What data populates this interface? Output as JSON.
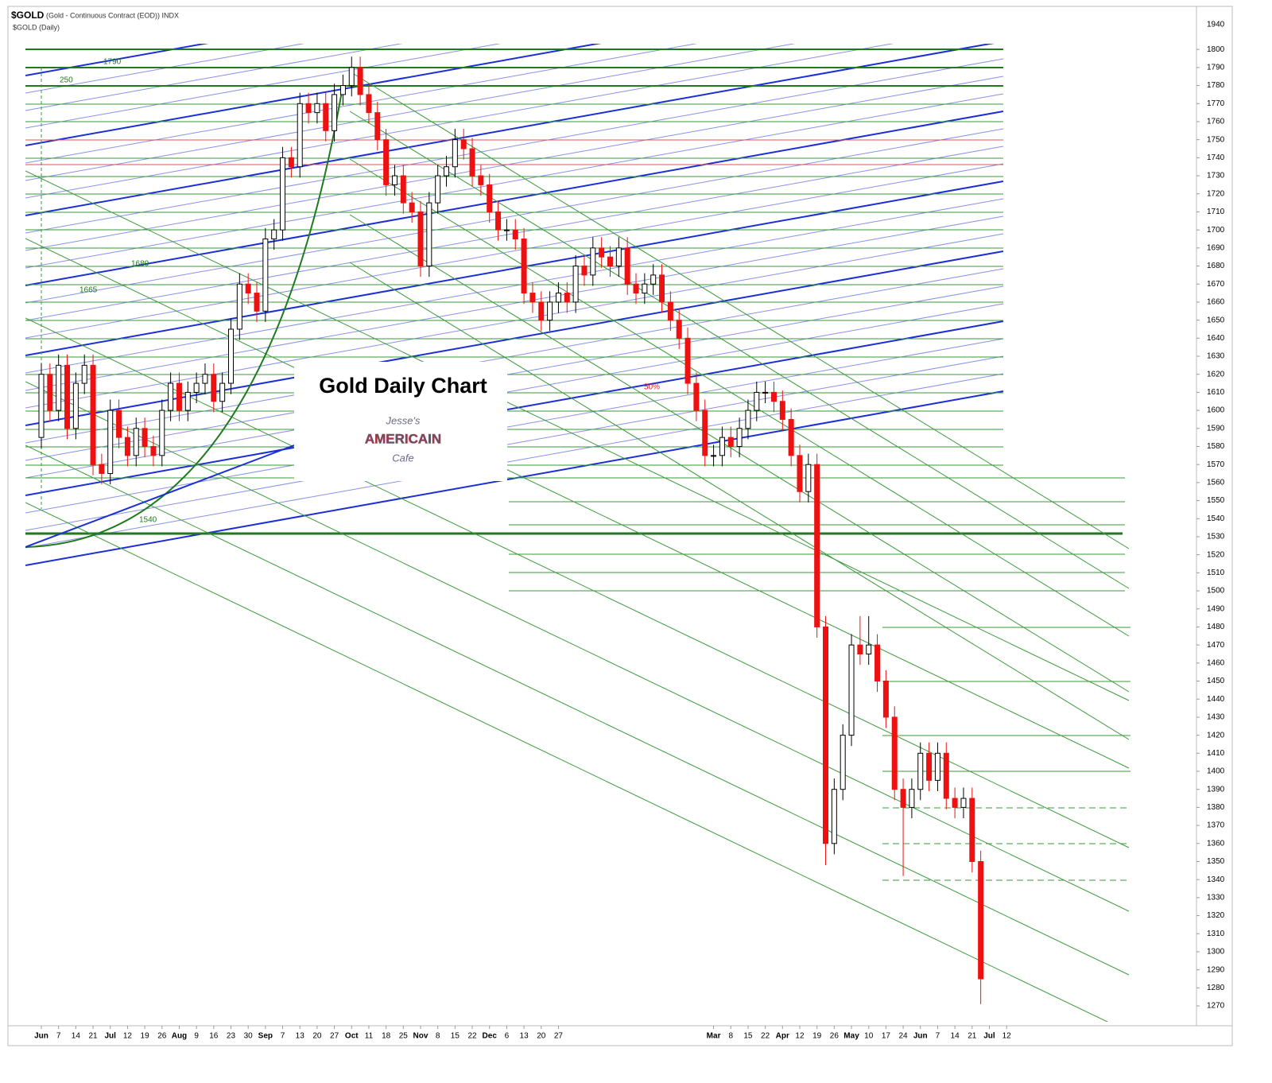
{
  "chart_data": {
    "type": "candlestick",
    "symbol": "$GOLD",
    "description": "(Gold - Continuous Contract (EOD)) INDX",
    "subtitle": "$GOLD (Daily)",
    "title": "Gold Daily Chart",
    "logo": {
      "line1": "Jesse's",
      "line2": "AMERICAIN",
      "line3": "Cafe"
    },
    "annotations": [
      "1790",
      "250",
      "1680",
      "1665",
      "1540",
      "50%"
    ],
    "y_axis_top_label": "1940",
    "categories": [
      "Jun",
      null,
      "7",
      null,
      "14",
      null,
      "21",
      null,
      "Jul",
      null,
      "12",
      null,
      "19",
      null,
      "26",
      null,
      "Aug",
      null,
      "9",
      null,
      "16",
      null,
      "23",
      null,
      "30",
      null,
      "Sep",
      null,
      "7",
      null,
      "13",
      null,
      "20",
      null,
      "27",
      null,
      "Oct",
      null,
      "11",
      null,
      "18",
      null,
      "25",
      null,
      "Nov",
      null,
      "8",
      null,
      "15",
      null,
      "22",
      null,
      "Dec",
      null,
      "6",
      null,
      "13",
      null,
      "20",
      null,
      "27",
      null,
      null,
      null,
      null,
      null,
      null,
      null,
      null,
      null,
      null,
      null,
      null,
      null,
      null,
      null,
      null,
      null,
      "Mar",
      null,
      "8",
      null,
      "15",
      null,
      "22",
      null,
      "Apr",
      null,
      "12",
      null,
      "19",
      null,
      "26",
      null,
      "May",
      null,
      "10",
      null,
      "17",
      null,
      "24",
      null,
      "Jun",
      null,
      "7",
      null,
      "14",
      null,
      "21",
      null,
      "Jul",
      null,
      "12",
      null
    ],
    "open": [
      1585,
      1620,
      1600,
      1625,
      1590,
      1615,
      1625,
      1570,
      1565,
      1600,
      1585,
      1575,
      1590,
      1580,
      1575,
      1600,
      1615,
      1600,
      1610,
      1615,
      1620,
      1605,
      1615,
      1645,
      1670,
      1665,
      1655,
      1695,
      1700,
      1740,
      1735,
      1770,
      1765,
      1770,
      1755,
      1775,
      1780,
      1790,
      1775,
      1765,
      1750,
      1725,
      1730,
      1715,
      1710,
      1680,
      1715,
      1730,
      1735,
      1750,
      1745,
      1730,
      1725,
      1710,
      1700,
      1700,
      1695,
      1665,
      1660,
      1650,
      1660,
      1665,
      1660,
      1680,
      1675,
      1690,
      1685,
      1680,
      1690,
      1670,
      1665,
      1670,
      1675,
      1660,
      1650,
      1640,
      1615,
      1600,
      1575,
      1575,
      1585,
      1580,
      1590,
      1600,
      1610,
      1610,
      1605,
      1595,
      1575,
      1555,
      1570,
      1480,
      1360,
      1390,
      1420,
      1470,
      1465,
      1470,
      1450,
      1430,
      1390,
      1380,
      1390,
      1410,
      1395,
      1410,
      1385,
      1380,
      1385,
      1350,
      null,
      null,
      null,
      null
    ],
    "high": [
      1626,
      1626,
      1631,
      1631,
      1621,
      1631,
      1631,
      1576,
      1606,
      1606,
      1591,
      1596,
      1596,
      1586,
      1606,
      1621,
      1621,
      1616,
      1621,
      1626,
      1626,
      1621,
      1651,
      1676,
      1676,
      1671,
      1701,
      1706,
      1746,
      1746,
      1776,
      1776,
      1776,
      1776,
      1781,
      1786,
      1796,
      1796,
      1781,
      1771,
      1756,
      1736,
      1736,
      1721,
      1716,
      1721,
      1736,
      1741,
      1756,
      1756,
      1751,
      1736,
      1731,
      1716,
      1706,
      1706,
      1701,
      1671,
      1666,
      1666,
      1671,
      1671,
      1686,
      1686,
      1696,
      1696,
      1691,
      1696,
      1696,
      1676,
      1676,
      1681,
      1681,
      1666,
      1656,
      1646,
      1621,
      1606,
      1581,
      1591,
      1591,
      1596,
      1606,
      1616,
      1616,
      1616,
      1611,
      1601,
      1581,
      1576,
      1576,
      1486,
      1396,
      1426,
      1476,
      1486,
      1486,
      1476,
      1456,
      1436,
      1396,
      1396,
      1416,
      1416,
      1416,
      1416,
      1391,
      1391,
      1391,
      1356,
      null,
      null,
      null,
      null
    ],
    "low": [
      1579,
      1594,
      1594,
      1584,
      1584,
      1609,
      1564,
      1559,
      1559,
      1579,
      1569,
      1569,
      1574,
      1569,
      1569,
      1594,
      1594,
      1594,
      1604,
      1609,
      1599,
      1599,
      1609,
      1639,
      1659,
      1649,
      1649,
      1689,
      1694,
      1729,
      1729,
      1759,
      1759,
      1749,
      1749,
      1769,
      1774,
      1769,
      1759,
      1744,
      1719,
      1719,
      1709,
      1704,
      1674,
      1674,
      1709,
      1724,
      1729,
      1739,
      1724,
      1719,
      1704,
      1694,
      1694,
      1689,
      1659,
      1654,
      1644,
      1644,
      1654,
      1654,
      1654,
      1669,
      1669,
      1679,
      1674,
      1674,
      1664,
      1659,
      1659,
      1664,
      1654,
      1644,
      1634,
      1609,
      1594,
      1569,
      1569,
      1569,
      1574,
      1574,
      1584,
      1594,
      1604,
      1599,
      1589,
      1569,
      1549,
      1549,
      1474,
      1348,
      1354,
      1384,
      1414,
      1459,
      1459,
      1444,
      1424,
      1384,
      1342,
      1374,
      1384,
      1389,
      1389,
      1379,
      1374,
      1374,
      1344,
      1271,
      null,
      null,
      null,
      null
    ],
    "close": [
      1620,
      1600,
      1625,
      1590,
      1615,
      1625,
      1570,
      1565,
      1600,
      1585,
      1575,
      1590,
      1580,
      1575,
      1600,
      1615,
      1600,
      1610,
      1615,
      1620,
      1605,
      1615,
      1645,
      1670,
      1665,
      1655,
      1695,
      1700,
      1740,
      1735,
      1770,
      1765,
      1770,
      1755,
      1775,
      1780,
      1790,
      1775,
      1765,
      1750,
      1725,
      1730,
      1715,
      1710,
      1680,
      1715,
      1730,
      1735,
      1750,
      1745,
      1730,
      1725,
      1710,
      1700,
      1700,
      1695,
      1665,
      1660,
      1650,
      1660,
      1665,
      1660,
      1680,
      1675,
      1690,
      1685,
      1680,
      1690,
      1670,
      1665,
      1670,
      1675,
      1660,
      1650,
      1640,
      1615,
      1600,
      1575,
      1575,
      1585,
      1580,
      1590,
      1600,
      1610,
      1610,
      1605,
      1595,
      1575,
      1555,
      1570,
      1480,
      1360,
      1390,
      1420,
      1470,
      1465,
      1470,
      1450,
      1430,
      1390,
      1380,
      1390,
      1410,
      1395,
      1410,
      1385,
      1380,
      1385,
      1350,
      1285,
      null,
      null,
      null,
      null
    ],
    "up_color": "#ffffff",
    "down_color": "#ee1111",
    "wick_color": "#000000",
    "ylim": [
      1259,
      1823
    ],
    "yticks": [
      1800,
      1790,
      1780,
      1770,
      1760,
      1750,
      1740,
      1730,
      1720,
      1710,
      1700,
      1690,
      1680,
      1670,
      1660,
      1650,
      1640,
      1630,
      1620,
      1610,
      1600,
      1590,
      1580,
      1570,
      1560,
      1550,
      1540,
      1530,
      1520,
      1510,
      1500,
      1490,
      1480,
      1470,
      1460,
      1450,
      1440,
      1430,
      1420,
      1410,
      1400,
      1390,
      1380,
      1370,
      1360,
      1350,
      1340,
      1330,
      1320,
      1310,
      1300,
      1290,
      1280,
      1270
    ]
  }
}
